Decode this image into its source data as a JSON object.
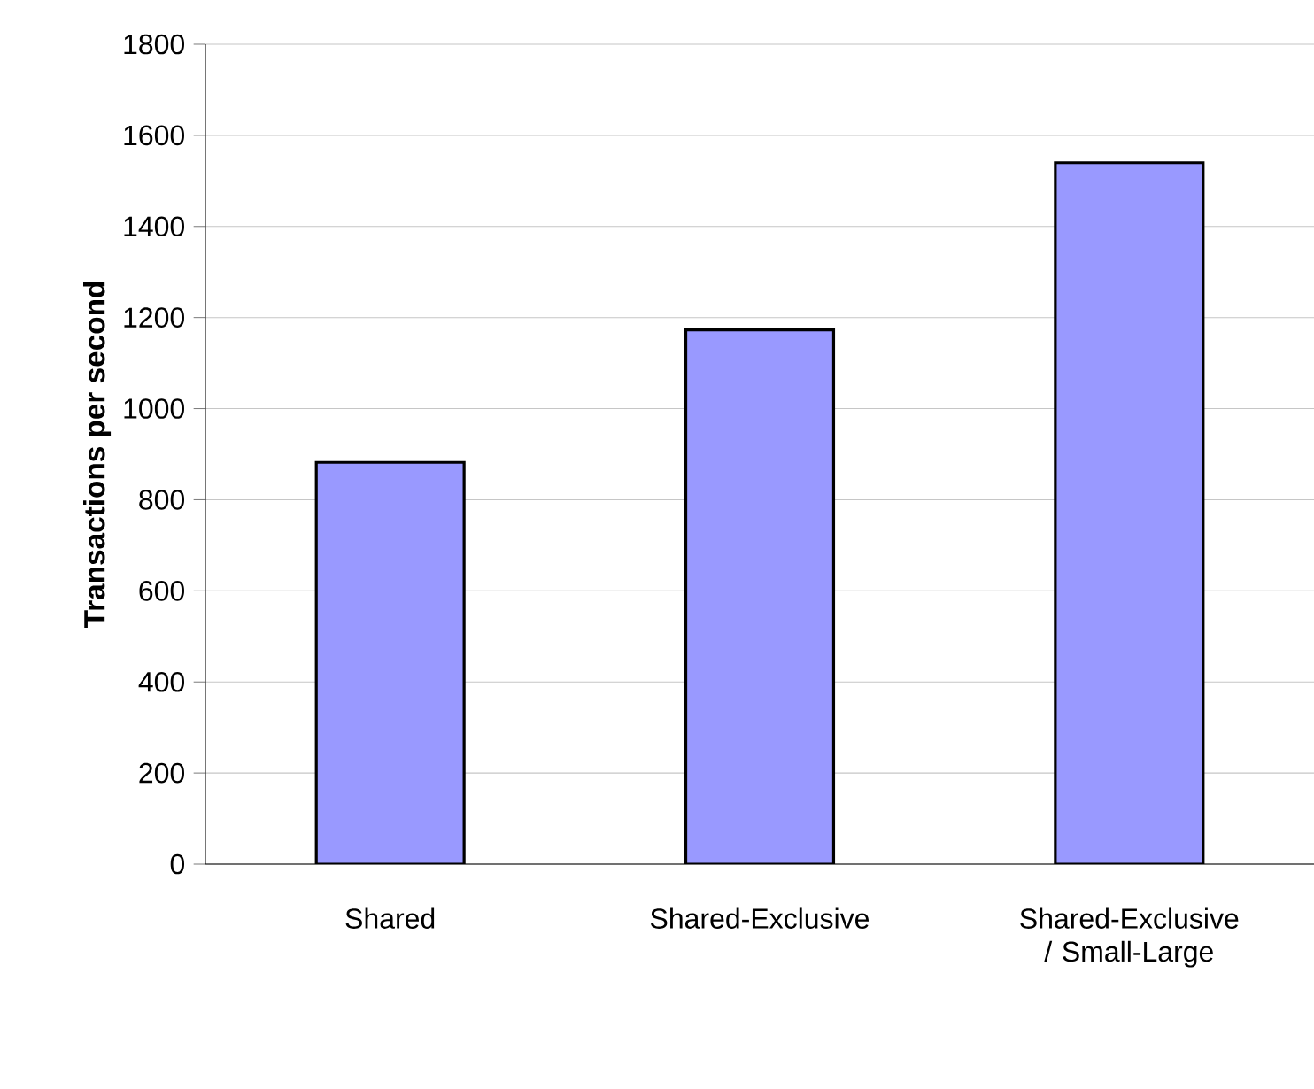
{
  "chart_data": {
    "type": "bar",
    "ylabel": "**Transactions per second**",
    "categories": [
      "Shared",
      "Shared-Exclusive",
      "Shared-Exclusive / Small-Large"
    ],
    "values": [
      882,
      1173,
      1540
    ],
    "color": "#9999ff",
    "ylim": [
      0,
      1800
    ],
    "yticks": [
      0,
      200,
      400,
      600,
      800,
      1000,
      1200,
      1400,
      1600,
      1800
    ],
    "grid": "y"
  }
}
